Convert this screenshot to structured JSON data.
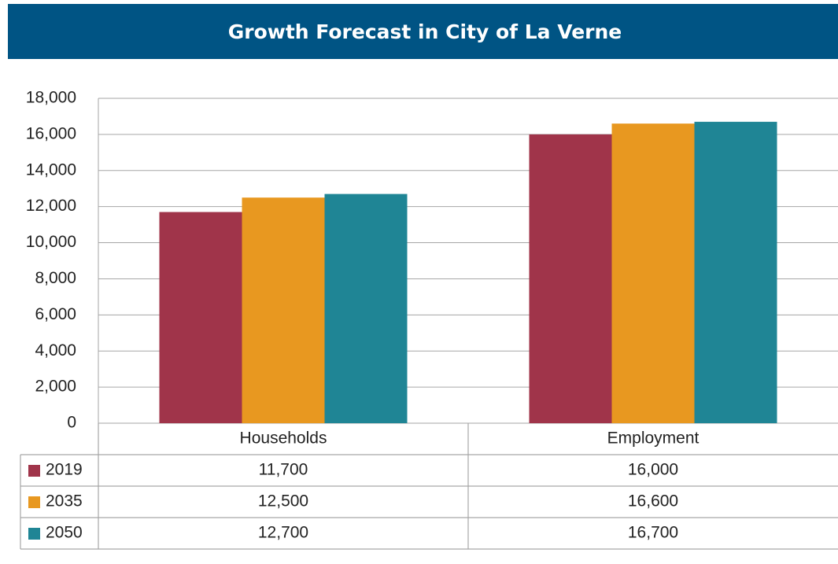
{
  "chart_data": {
    "type": "bar",
    "title": "Growth Forecast in City of La Verne",
    "categories": [
      "Households",
      "Employment"
    ],
    "series": [
      {
        "name": "2019",
        "color": "#a0344a",
        "values": [
          11700,
          16000
        ],
        "value_labels": [
          "11,700",
          "16,000"
        ]
      },
      {
        "name": "2035",
        "color": "#e89820",
        "values": [
          12500,
          16600
        ],
        "value_labels": [
          "12,500",
          "16,600"
        ]
      },
      {
        "name": "2050",
        "color": "#1f8595",
        "values": [
          12700,
          16700
        ],
        "value_labels": [
          "12,700",
          "16,700"
        ]
      }
    ],
    "ylim": [
      0,
      18000
    ],
    "yticks": [
      0,
      {
        "value": 2000,
        "label": "2,000"
      },
      {
        "value": 4000,
        "label": "4,000"
      },
      {
        "value": 6000,
        "label": "6,000"
      },
      {
        "value": 8000,
        "label": "8,000"
      },
      {
        "value": 10000,
        "label": "10,000"
      },
      {
        "value": 12000,
        "label": "12,000"
      },
      {
        "value": 14000,
        "label": "14,000"
      },
      {
        "value": 16000,
        "label": "16,000"
      },
      {
        "value": 18000,
        "label": "18,000"
      }
    ],
    "grid": true,
    "title_color": "#005484"
  }
}
